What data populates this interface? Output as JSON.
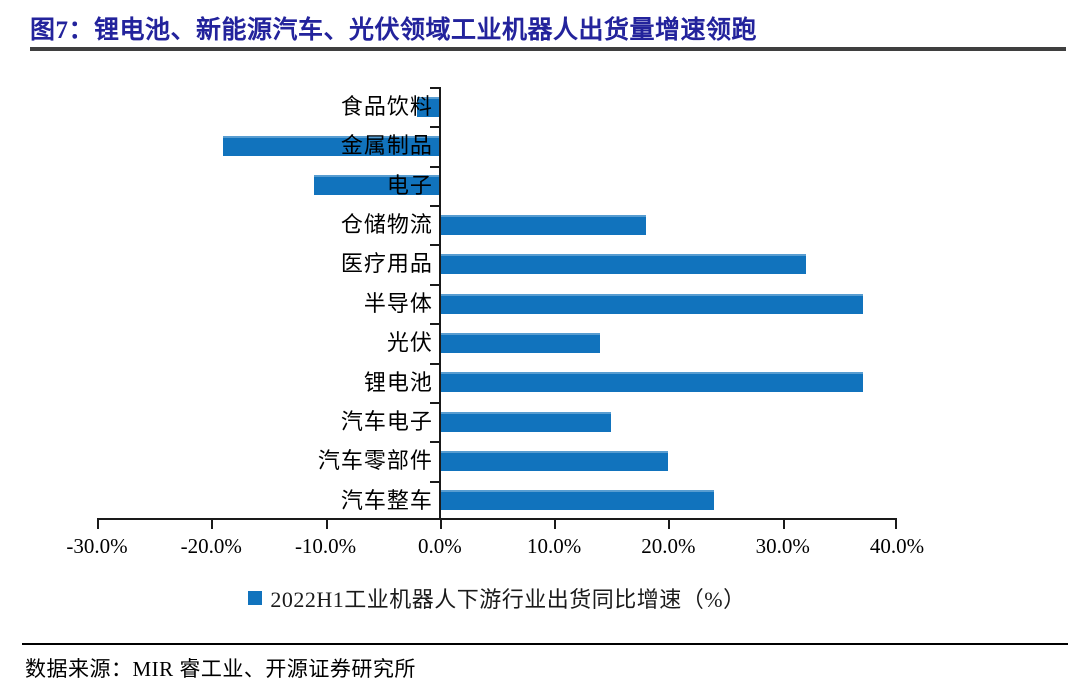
{
  "page": {
    "title": "图7：锂电池、新能源汽车、光伏领域工业机器人出货量增速领跑",
    "source_note": "数据来源：MIR 睿工业、开源证券研究所"
  },
  "colors": {
    "bar": "#1173BD",
    "title": "#23239C",
    "axis": "#1a1a1a"
  },
  "chart_data": {
    "type": "bar",
    "orientation": "horizontal",
    "categories": [
      "食品饮料",
      "金属制品",
      "电子",
      "仓储物流",
      "医疗用品",
      "半导体",
      "光伏",
      "锂电池",
      "汽车电子",
      "汽车零部件",
      "汽车整车"
    ],
    "values": [
      -2,
      -19,
      -11,
      18,
      32,
      37,
      14,
      37,
      15,
      20,
      24
    ],
    "unit": "%",
    "xlim": [
      -30,
      40
    ],
    "x_tick_values": [
      -30,
      -20,
      -10,
      0,
      10,
      20,
      30,
      40
    ],
    "x_tick_labels": [
      "-30.0%",
      "-20.0%",
      "-10.0%",
      "0.0%",
      "10.0%",
      "20.0%",
      "30.0%",
      "40.0%"
    ],
    "legend": [
      "2022H1工业机器人下游行业出货同比增速（%）"
    ],
    "legend_position": "bottom-center",
    "grid": false,
    "title": "图7：锂电池、新能源汽车、光伏领域工业机器人出货量增速领跑"
  }
}
